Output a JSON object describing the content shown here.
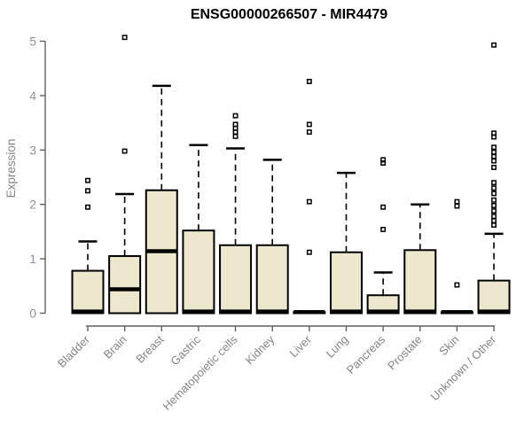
{
  "chart_data": {
    "type": "boxplot",
    "title": "ENSG00000266507 - MIR4479",
    "xlabel": "",
    "ylabel": "Expression",
    "ylim": [
      0,
      5
    ],
    "yticks": [
      0,
      1,
      2,
      3,
      4,
      5
    ],
    "grid": false,
    "legend": "none",
    "categories": [
      "Bladder",
      "Brain",
      "Breast",
      "Gastric",
      "Hematopoietic cells",
      "Kidney",
      "Liver",
      "Lung",
      "Pancreas",
      "Prostate",
      "Skin",
      "Unknown / Other"
    ],
    "boxes": [
      {
        "category": "Bladder",
        "whisker_low": 0,
        "q1": 0,
        "median": 0.03,
        "q3": 0.78,
        "whisker_high": 1.32,
        "outliers": [
          1.95,
          2.25,
          2.44
        ]
      },
      {
        "category": "Brain",
        "whisker_low": 0,
        "q1": 0,
        "median": 0.44,
        "q3": 1.05,
        "whisker_high": 2.19,
        "outliers": [
          2.98,
          5.07
        ]
      },
      {
        "category": "Breast",
        "whisker_low": 0,
        "q1": 0,
        "median": 1.14,
        "q3": 2.26,
        "whisker_high": 4.18,
        "outliers": []
      },
      {
        "category": "Gastric",
        "whisker_low": 0,
        "q1": 0,
        "median": 0.03,
        "q3": 1.52,
        "whisker_high": 3.09,
        "outliers": []
      },
      {
        "category": "Hematopoietic cells",
        "whisker_low": 0,
        "q1": 0,
        "median": 0.03,
        "q3": 1.25,
        "whisker_high": 3.03,
        "outliers": [
          3.25,
          3.33,
          3.4,
          3.47,
          3.63
        ]
      },
      {
        "category": "Kidney",
        "whisker_low": 0,
        "q1": 0,
        "median": 0.03,
        "q3": 1.25,
        "whisker_high": 2.82,
        "outliers": []
      },
      {
        "category": "Liver",
        "whisker_low": 0,
        "q1": 0,
        "median": 0.02,
        "q3": 0.02,
        "whisker_high": 0.02,
        "outliers": [
          1.12,
          2.05,
          3.33,
          3.47,
          4.26
        ]
      },
      {
        "category": "Lung",
        "whisker_low": 0,
        "q1": 0,
        "median": 0.03,
        "q3": 1.12,
        "whisker_high": 2.58,
        "outliers": []
      },
      {
        "category": "Pancreas",
        "whisker_low": 0,
        "q1": 0,
        "median": 0.03,
        "q3": 0.33,
        "whisker_high": 0.75,
        "outliers": [
          1.54,
          1.95,
          2.76,
          2.82
        ]
      },
      {
        "category": "Prostate",
        "whisker_low": 0,
        "q1": 0,
        "median": 0.03,
        "q3": 1.16,
        "whisker_high": 2.0,
        "outliers": []
      },
      {
        "category": "Skin",
        "whisker_low": 0,
        "q1": 0,
        "median": 0.02,
        "q3": 0.02,
        "whisker_high": 0.02,
        "outliers": [
          0.52,
          1.97,
          2.05
        ]
      },
      {
        "category": "Unknown / Other",
        "whisker_low": 0,
        "q1": 0,
        "median": 0.03,
        "q3": 0.6,
        "whisker_high": 1.46,
        "outliers": [
          4.93,
          3.31,
          3.24,
          3.05,
          2.96,
          2.88,
          2.8,
          2.68,
          2.4,
          2.3,
          2.2,
          2.08,
          1.98,
          1.88,
          1.78,
          1.7,
          1.62
        ]
      }
    ],
    "colors": {
      "box_fill": "#EDE7CD",
      "box_border": "#000000",
      "median": "#000000",
      "whisker": "#000000",
      "outlier": "#000000",
      "axis": "#606060",
      "y_tick_label": "#8C93A8",
      "x_tick_label": "#848484",
      "title": "#000000"
    }
  }
}
